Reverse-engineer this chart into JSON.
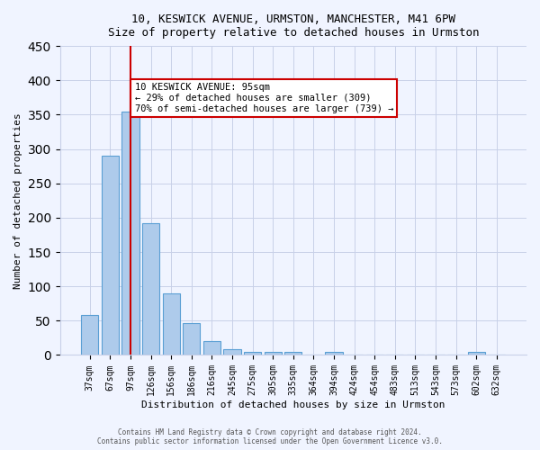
{
  "title1": "10, KESWICK AVENUE, URMSTON, MANCHESTER, M41 6PW",
  "title2": "Size of property relative to detached houses in Urmston",
  "xlabel": "Distribution of detached houses by size in Urmston",
  "ylabel": "Number of detached properties",
  "categories": [
    "37sqm",
    "67sqm",
    "97sqm",
    "126sqm",
    "156sqm",
    "186sqm",
    "216sqm",
    "245sqm",
    "275sqm",
    "305sqm",
    "335sqm",
    "364sqm",
    "394sqm",
    "424sqm",
    "454sqm",
    "483sqm",
    "513sqm",
    "543sqm",
    "573sqm",
    "602sqm",
    "632sqm"
  ],
  "values": [
    58,
    290,
    355,
    192,
    90,
    46,
    20,
    9,
    4,
    5,
    4,
    0,
    4,
    0,
    0,
    0,
    0,
    0,
    0,
    4,
    0
  ],
  "bar_color": "#aecbeb",
  "bar_edge_color": "#5a9fd4",
  "highlight_bar_index": 2,
  "highlight_line_color": "#cc0000",
  "annotation_text": "10 KESWICK AVENUE: 95sqm\n← 29% of detached houses are smaller (309)\n70% of semi-detached houses are larger (739) →",
  "annotation_box_color": "#ffffff",
  "annotation_box_edge_color": "#cc0000",
  "ylim": [
    0,
    450
  ],
  "footer": "Contains HM Land Registry data © Crown copyright and database right 2024.\nContains public sector information licensed under the Open Government Licence v3.0.",
  "bg_color": "#f0f4ff",
  "grid_color": "#c8d0e8"
}
